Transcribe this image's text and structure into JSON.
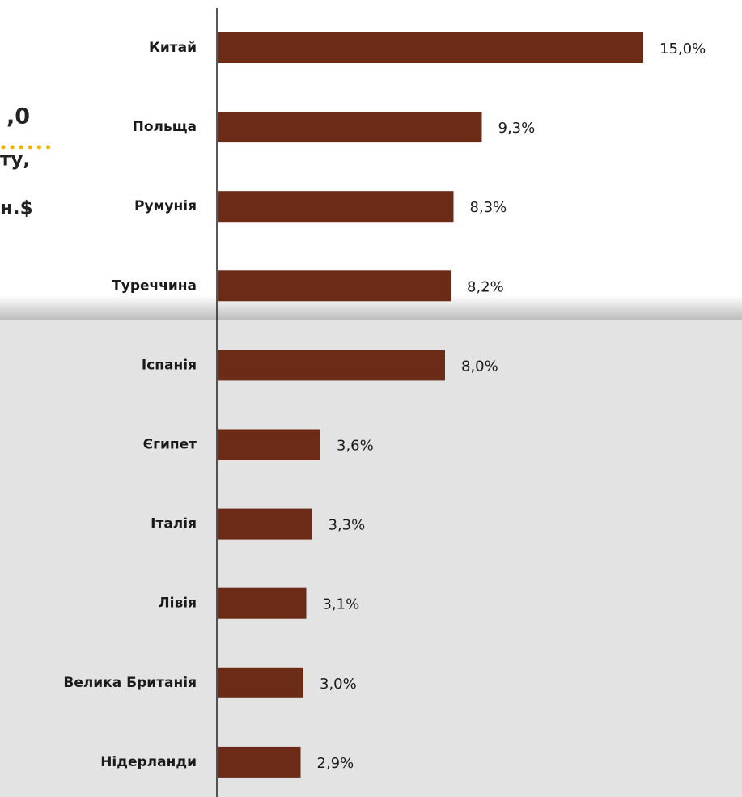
{
  "chart_data": {
    "type": "bar",
    "orientation": "horizontal",
    "categories": [
      "Китай",
      "Польща",
      "Румунія",
      "Туреччина",
      "Іспанія",
      "Єгипет",
      "Італія",
      "Лівія",
      "Велика Британія",
      "Нідерланди"
    ],
    "values": [
      15.0,
      9.3,
      8.3,
      8.2,
      8.0,
      3.6,
      3.3,
      3.1,
      3.0,
      2.9
    ],
    "value_labels": [
      "15,0%",
      "9,3%",
      "8,3%",
      "8,2%",
      "8,0%",
      "3,6%",
      "3,3%",
      "3,1%",
      "3,0%",
      "2,9%"
    ],
    "color": "#6b2b17"
  },
  "fragments": [
    ",0",
    "ту,",
    "н.$"
  ]
}
